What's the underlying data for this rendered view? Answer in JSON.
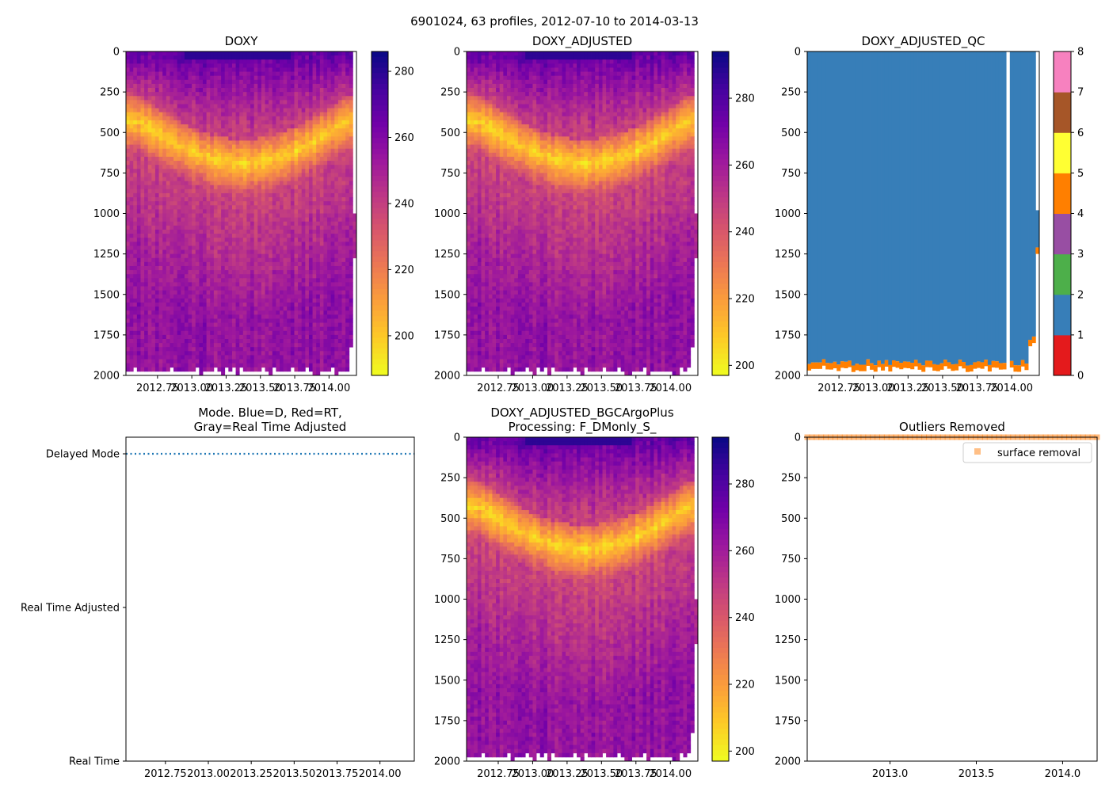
{
  "suptitle": "6901024, 63 profiles, 2012-07-10 to 2014-03-13",
  "colors": {
    "plasma": [
      "#0d0887",
      "#46039f",
      "#7201a8",
      "#9c179e",
      "#bd3786",
      "#d8576b",
      "#ed7953",
      "#fb9f3a",
      "#fdca26",
      "#f0f921"
    ],
    "qc": [
      "#e41a1c",
      "#377eb8",
      "#4daf4a",
      "#984ea3",
      "#ff7f00",
      "#ffff33",
      "#a65628",
      "#f781bf",
      "#999999"
    ],
    "mode_line": "#1f77b4",
    "outlier": "#ff7f0e"
  },
  "chart_data": [
    {
      "id": "doxy",
      "type": "heatmap",
      "title": "DOXY",
      "xlim": [
        2012.52,
        2014.2
      ],
      "ylim": [
        2000,
        0
      ],
      "xticks": [
        2012.75,
        2013.0,
        2013.25,
        2013.5,
        2013.75,
        2014.0
      ],
      "xtick_labels": [
        "2012.75",
        "2013.00",
        "2013.25",
        "2013.50",
        "2013.75",
        "2014.00"
      ],
      "yticks": [
        0,
        250,
        500,
        750,
        1000,
        1250,
        1500,
        1750,
        2000
      ],
      "colorbar": {
        "min": 188,
        "max": 286,
        "ticks": [
          200,
          220,
          240,
          260,
          280
        ],
        "cmap": "plasma"
      },
      "n_profiles": 63
    },
    {
      "id": "doxy_adj",
      "type": "heatmap",
      "title": "DOXY_ADJUSTED",
      "xlim": [
        2012.52,
        2014.2
      ],
      "ylim": [
        2000,
        0
      ],
      "xticks": [
        2012.75,
        2013.0,
        2013.25,
        2013.5,
        2013.75,
        2014.0
      ],
      "xtick_labels": [
        "2012.75",
        "2013.00",
        "2013.25",
        "2013.50",
        "2013.75",
        "2014.00"
      ],
      "yticks": [
        0,
        250,
        500,
        750,
        1000,
        1250,
        1500,
        1750,
        2000
      ],
      "colorbar": {
        "min": 197,
        "max": 294,
        "ticks": [
          200,
          220,
          240,
          260,
          280
        ],
        "cmap": "plasma"
      },
      "n_profiles": 63
    },
    {
      "id": "doxy_qc",
      "type": "heatmap",
      "title": "DOXY_ADJUSTED_QC",
      "xlim": [
        2012.52,
        2014.2
      ],
      "ylim": [
        2000,
        0
      ],
      "xticks": [
        2012.75,
        2013.0,
        2013.25,
        2013.5,
        2013.75,
        2014.0
      ],
      "xtick_labels": [
        "2012.75",
        "2013.00",
        "2013.25",
        "2013.50",
        "2013.75",
        "2014.00"
      ],
      "yticks": [
        0,
        250,
        500,
        750,
        1000,
        1250,
        1500,
        1750,
        2000
      ],
      "dominant_flag": 1,
      "bottom_flag": 4,
      "colorbar": {
        "min": 0,
        "max": 8,
        "ticks": [
          0,
          1,
          2,
          3,
          4,
          5,
          6,
          7,
          8
        ],
        "cmap": "qc"
      }
    },
    {
      "id": "mode",
      "type": "line",
      "title_lines": [
        "Mode. Blue=D, Red=RT,",
        "Gray=Real Time Adjusted"
      ],
      "xlim": [
        2012.52,
        2014.2
      ],
      "xticks": [
        2012.75,
        2013.0,
        2013.25,
        2013.5,
        2013.75,
        2014.0
      ],
      "xtick_labels": [
        "2012.75",
        "2013.00",
        "2013.25",
        "2013.50",
        "2013.75",
        "2014.00"
      ],
      "ylim": [
        0,
        2
      ],
      "ytick_values": [
        2,
        1,
        0
      ],
      "ytick_labels": [
        "Delayed Mode",
        "Real Time Adjusted",
        "Real Time"
      ],
      "series": [
        {
          "name": "mode",
          "value": 2,
          "style": "dotted"
        }
      ]
    },
    {
      "id": "doxy_bgc",
      "type": "heatmap",
      "title_lines": [
        "DOXY_ADJUSTED_BGCArgoPlus",
        "Processing: F_DMonly_S_"
      ],
      "xlim": [
        2012.52,
        2014.2
      ],
      "ylim": [
        2000,
        0
      ],
      "xticks": [
        2012.75,
        2013.0,
        2013.25,
        2013.5,
        2013.75,
        2014.0
      ],
      "xtick_labels": [
        "2012.75",
        "2013.00",
        "2013.25",
        "2013.50",
        "2013.75",
        "2014.00"
      ],
      "yticks": [
        0,
        250,
        500,
        750,
        1000,
        1250,
        1500,
        1750,
        2000
      ],
      "colorbar": {
        "min": 197,
        "max": 294,
        "ticks": [
          200,
          220,
          240,
          260,
          280
        ],
        "cmap": "plasma"
      },
      "n_profiles": 63
    },
    {
      "id": "outliers",
      "type": "scatter",
      "title": "Outliers Removed",
      "xlim": [
        2012.52,
        2014.2
      ],
      "ylim": [
        2000,
        0
      ],
      "xticks": [
        2013.0,
        2013.5,
        2014.0
      ],
      "xtick_labels": [
        "2013.0",
        "2013.5",
        "2014.0"
      ],
      "yticks": [
        0,
        250,
        500,
        750,
        1000,
        1250,
        1500,
        1750,
        2000
      ],
      "legend": "surface removal",
      "legend_loc": "upper-right",
      "point_depth": 0,
      "n_points": 63
    }
  ]
}
